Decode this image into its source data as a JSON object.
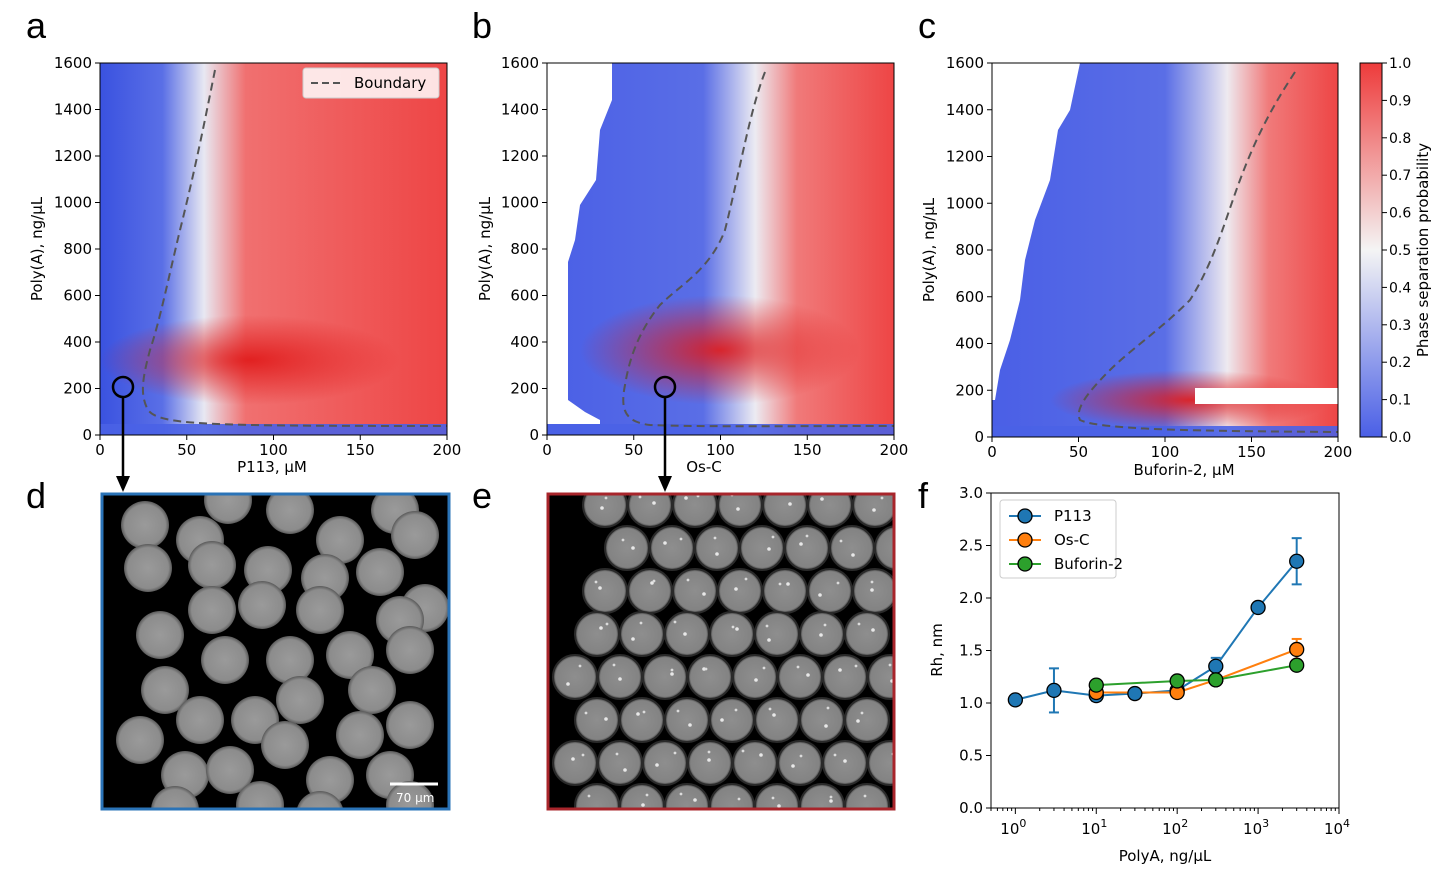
{
  "panels": {
    "a": "a",
    "b": "b",
    "c": "c",
    "d": "d",
    "e": "e",
    "f": "f"
  },
  "phase_diagrams": {
    "ylabel": "Poly(A), ng/μL",
    "y_ticks": [
      "0",
      "200",
      "400",
      "600",
      "800",
      "1000",
      "1200",
      "1400",
      "1600"
    ],
    "x_ticks": [
      "0",
      "50",
      "100",
      "150",
      "200"
    ],
    "legend_label": "Boundary",
    "xlabels": {
      "a": "P113, μM",
      "b": "Os-C",
      "c": "Buforin-2, μM"
    },
    "colorbar": {
      "label": "Phase separation probability",
      "ticks": [
        "0.0",
        "0.1",
        "0.2",
        "0.3",
        "0.4",
        "0.5",
        "0.6",
        "0.7",
        "0.8",
        "0.9",
        "1.0"
      ],
      "colors": {
        "low": "#4a5fe6",
        "mid": "#f4f4f4",
        "high": "#ee3b3b"
      }
    }
  },
  "micrographs": {
    "scale_bar_label": "70 μm",
    "frame_colors": {
      "d": "#2a73b7",
      "e": "#a8252b"
    }
  },
  "chart_data": {
    "type": "line",
    "xlabel": "PolyA, ng/μL",
    "ylabel": "Rh, nm",
    "x_scale": "log",
    "xlim": [
      0.5,
      10000
    ],
    "ylim": [
      0.0,
      3.0
    ],
    "x_tick_labels": [
      "10^0",
      "10^1",
      "10^2",
      "10^3",
      "10^4"
    ],
    "x_tick_base": "10",
    "x_tick_exps": [
      "0",
      "1",
      "2",
      "3",
      "4"
    ],
    "y_tick_labels": [
      "0.0",
      "0.5",
      "1.0",
      "1.5",
      "2.0",
      "2.5",
      "3.0"
    ],
    "legend_position": "top-left",
    "series": [
      {
        "name": "P113",
        "color": "#1f77b4",
        "x": [
          1,
          3,
          10,
          30,
          100,
          300,
          1000,
          3000
        ],
        "y": [
          1.03,
          1.12,
          1.07,
          1.09,
          1.12,
          1.35,
          1.91,
          2.35
        ],
        "err": [
          0,
          0.21,
          0.05,
          0,
          0,
          0.08,
          0,
          0.22
        ]
      },
      {
        "name": "Os-C",
        "color": "#ff7f0e",
        "x": [
          10,
          100,
          300,
          3000
        ],
        "y": [
          1.1,
          1.1,
          1.22,
          1.51
        ],
        "err": [
          0,
          0,
          0,
          0.1
        ]
      },
      {
        "name": "Buforin-2",
        "color": "#2ca02c",
        "x": [
          10,
          100,
          300,
          3000
        ],
        "y": [
          1.17,
          1.21,
          1.22,
          1.36
        ],
        "err": [
          0,
          0,
          0,
          0
        ]
      }
    ]
  }
}
